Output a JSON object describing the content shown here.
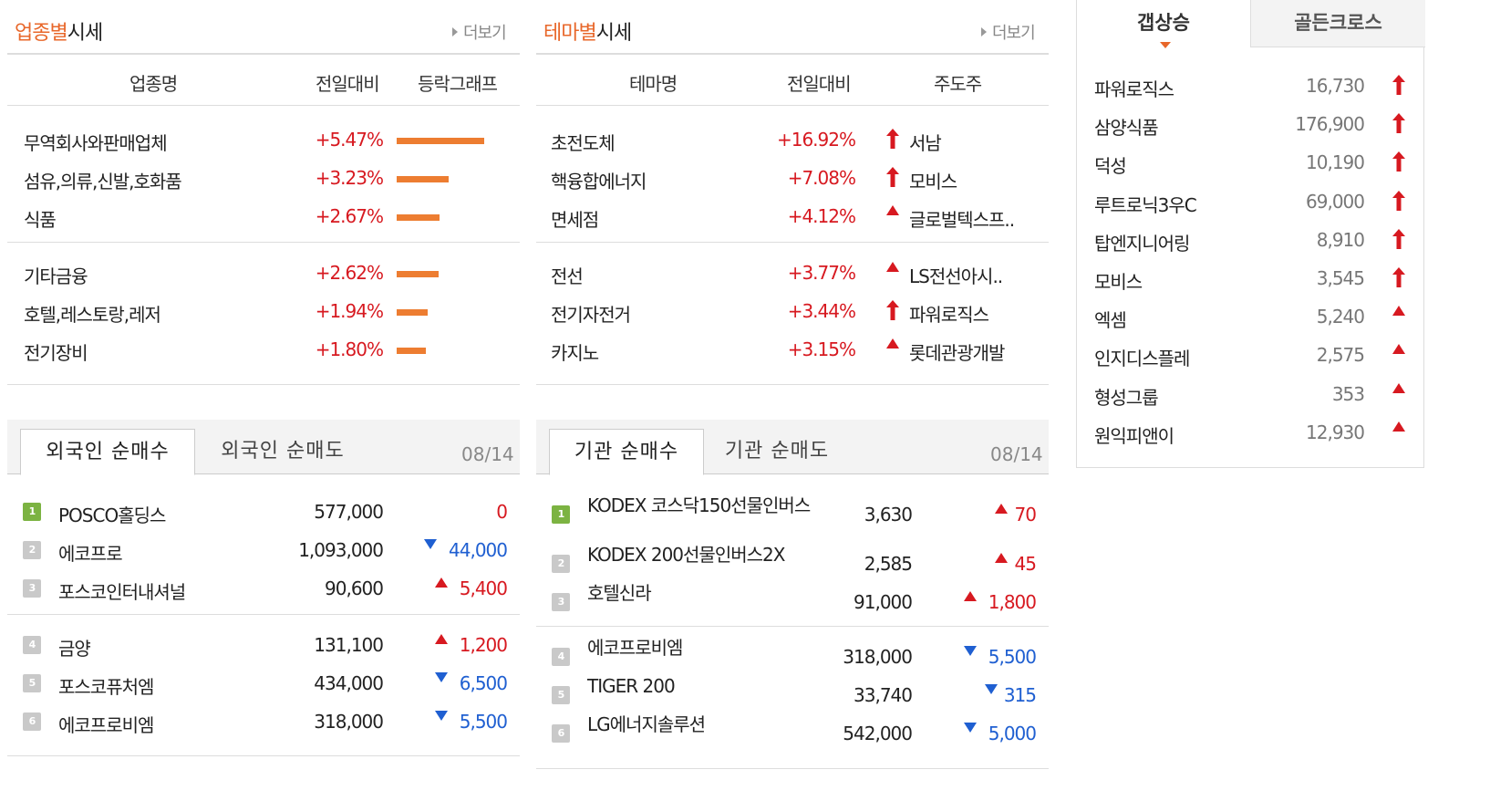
{
  "sector": {
    "title_hl": "업종별",
    "title_rest": "시세",
    "more": "더보기",
    "headers": [
      "업종명",
      "전일대비",
      "등락그래프"
    ],
    "rows": [
      {
        "name": "무역회사와판매업체",
        "change": "+5.47%",
        "pct": 5.47
      },
      {
        "name": "섬유,의류,신발,호화품",
        "change": "+3.23%",
        "pct": 3.23
      },
      {
        "name": "식품",
        "change": "+2.67%",
        "pct": 2.67
      },
      {
        "name": "기타금융",
        "change": "+2.62%",
        "pct": 2.62
      },
      {
        "name": "호텔,레스토랑,레저",
        "change": "+1.94%",
        "pct": 1.94
      },
      {
        "name": "전기장비",
        "change": "+1.80%",
        "pct": 1.8
      }
    ]
  },
  "theme": {
    "title_hl": "테마별",
    "title_rest": "시세",
    "more": "더보기",
    "headers": [
      "테마명",
      "전일대비",
      "주도주"
    ],
    "rows": [
      {
        "name": "초전도체",
        "change": "+16.92%",
        "icon": "up-arrow-icon",
        "leader": "서남"
      },
      {
        "name": "핵융합에너지",
        "change": "+7.08%",
        "icon": "up-arrow-icon",
        "leader": "모비스"
      },
      {
        "name": "면세점",
        "change": "+4.12%",
        "icon": "up-triangle-icon",
        "leader": "글로벌텍스프.."
      },
      {
        "name": "전선",
        "change": "+3.77%",
        "icon": "up-triangle-icon",
        "leader": "LS전선아시.."
      },
      {
        "name": "전기자전거",
        "change": "+3.44%",
        "icon": "up-arrow-icon",
        "leader": "파워로직스"
      },
      {
        "name": "카지노",
        "change": "+3.15%",
        "icon": "up-triangle-icon",
        "leader": "롯데관광개발"
      }
    ]
  },
  "foreign": {
    "tabs": [
      "외국인 순매수",
      "외국인 순매도"
    ],
    "date": "08/14",
    "rows": [
      {
        "rank": "1",
        "name": "POSCO홀딩스",
        "price": "577,000",
        "dir": "none",
        "diff": "0"
      },
      {
        "rank": "2",
        "name": "에코프로",
        "price": "1,093,000",
        "dir": "down",
        "diff": "44,000"
      },
      {
        "rank": "3",
        "name": "포스코인터내셔널",
        "price": "90,600",
        "dir": "up",
        "diff": "5,400"
      },
      {
        "rank": "4",
        "name": "금양",
        "price": "131,100",
        "dir": "up",
        "diff": "1,200"
      },
      {
        "rank": "5",
        "name": "포스코퓨처엠",
        "price": "434,000",
        "dir": "down",
        "diff": "6,500"
      },
      {
        "rank": "6",
        "name": "에코프로비엠",
        "price": "318,000",
        "dir": "down",
        "diff": "5,500"
      }
    ]
  },
  "institution": {
    "tabs": [
      "기관 순매수",
      "기관 순매도"
    ],
    "date": "08/14",
    "rows": [
      {
        "rank": "1",
        "name": "KODEX 코스닥150선물인버스",
        "price": "3,630",
        "dir": "up",
        "diff": "70"
      },
      {
        "rank": "2",
        "name": "KODEX 200선물인버스2X",
        "price": "2,585",
        "dir": "up",
        "diff": "45"
      },
      {
        "rank": "3",
        "name": "호텔신라",
        "price": "91,000",
        "dir": "up",
        "diff": "1,800"
      },
      {
        "rank": "4",
        "name": "에코프로비엠",
        "price": "318,000",
        "dir": "down",
        "diff": "5,500"
      },
      {
        "rank": "5",
        "name": "TIGER 200",
        "price": "33,740",
        "dir": "down",
        "diff": "315"
      },
      {
        "rank": "6",
        "name": "LG에너지솔루션",
        "price": "542,000",
        "dir": "down",
        "diff": "5,000"
      }
    ]
  },
  "gap": {
    "tabs": [
      "갭상승",
      "골든크로스"
    ],
    "rows": [
      {
        "name": "파워로직스",
        "price": "16,730",
        "icon": "up-arrow-icon"
      },
      {
        "name": "삼양식품",
        "price": "176,900",
        "icon": "up-arrow-icon"
      },
      {
        "name": "덕성",
        "price": "10,190",
        "icon": "up-arrow-icon"
      },
      {
        "name": "루트로닉3우C",
        "price": "69,000",
        "icon": "up-arrow-icon"
      },
      {
        "name": "탑엔지니어링",
        "price": "8,910",
        "icon": "up-arrow-icon"
      },
      {
        "name": "모비스",
        "price": "3,545",
        "icon": "up-arrow-icon"
      },
      {
        "name": "엑셈",
        "price": "5,240",
        "icon": "up-triangle-icon"
      },
      {
        "name": "인지디스플레",
        "price": "2,575",
        "icon": "up-triangle-icon"
      },
      {
        "name": "형성그룹",
        "price": "353",
        "icon": "up-triangle-icon"
      },
      {
        "name": "원익피앤이",
        "price": "12,930",
        "icon": "up-triangle-icon"
      }
    ]
  },
  "colors": {
    "accent": "#e8672a",
    "up": "#d71920",
    "down": "#1f5fd1",
    "bar": "#ed7d31"
  }
}
